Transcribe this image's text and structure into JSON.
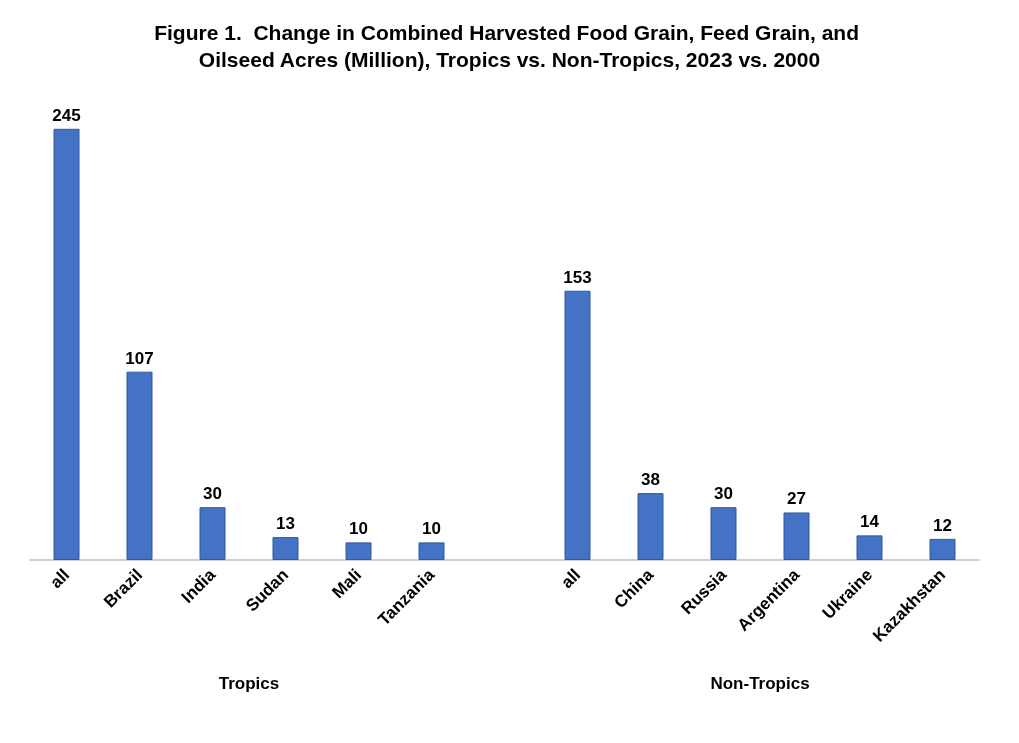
{
  "chart_data": {
    "type": "bar",
    "title": "Figure 1.  Change in Combined Harvested Food Grain, Feed Grain, and Oilseed Acres (Million), Tropics vs. Non-Tropics, 2023 vs. 2000",
    "categories": [
      "all",
      "Brazil",
      "India",
      "Sudan",
      "Mali",
      "Tanzania",
      null,
      "all",
      "China",
      "Russia",
      "Argentina",
      "Ukraine",
      "Kazakhstan"
    ],
    "values": [
      245,
      107,
      30,
      13,
      10,
      10,
      null,
      153,
      38,
      30,
      27,
      14,
      12
    ],
    "color": "#4472c4",
    "data_labels": true,
    "annotations": [
      "Tropics",
      "Non-Tropics"
    ]
  }
}
